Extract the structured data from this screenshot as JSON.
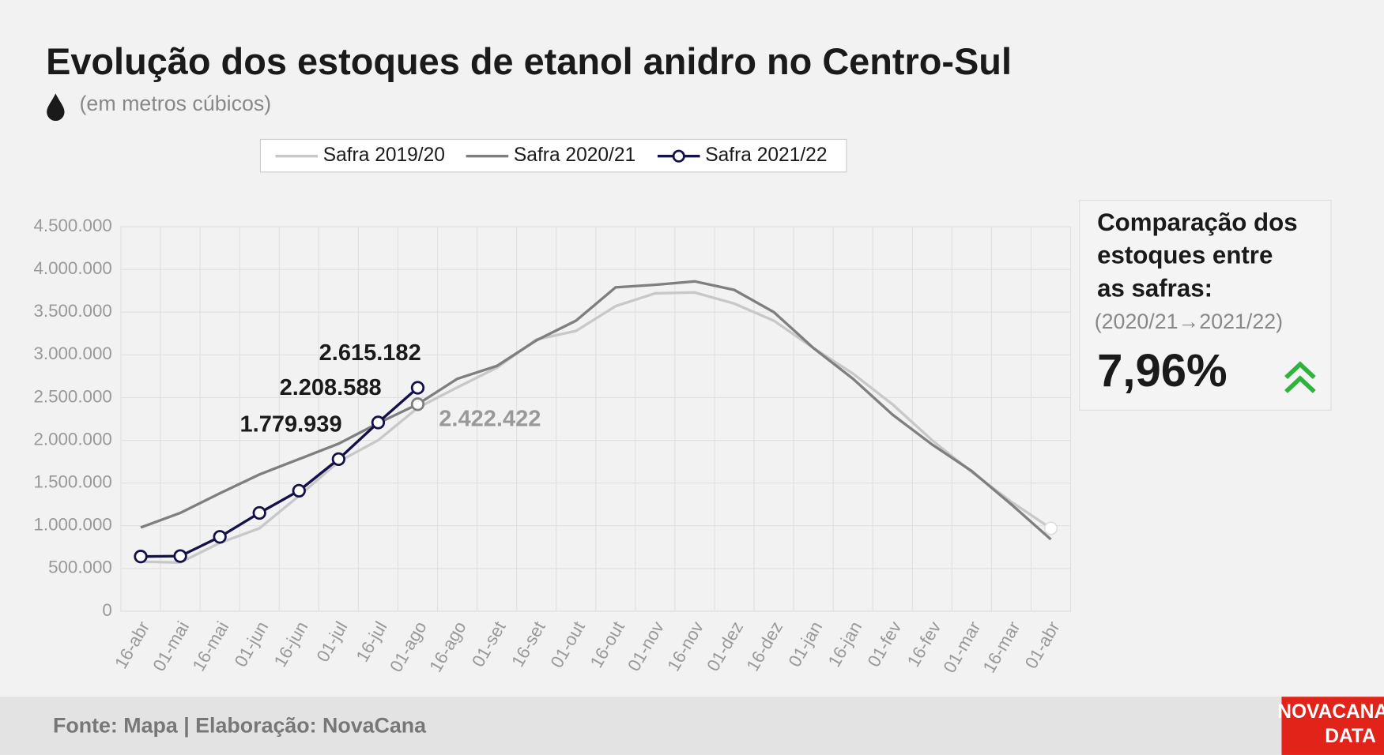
{
  "chart_data": {
    "type": "line",
    "title": "Evolução dos estoques de etanol anidro no Centro-Sul",
    "subtitle": "(em metros cúbicos)",
    "categories": [
      "16-abr",
      "01-mai",
      "16-mai",
      "01-jun",
      "16-jun",
      "01-jul",
      "16-jul",
      "01-ago",
      "16-ago",
      "01-set",
      "16-set",
      "01-out",
      "16-out",
      "01-nov",
      "16-nov",
      "01-dez",
      "16-dez",
      "01-jan",
      "16-jan",
      "01-fev",
      "16-fev",
      "01-mar",
      "16-mar",
      "01-abr"
    ],
    "series": [
      {
        "name": "Safra 2019/20",
        "color": "#c8c8c8",
        "values": [
          580000,
          570000,
          800000,
          970000,
          1350000,
          1750000,
          2000000,
          2380000,
          2620000,
          2850000,
          3180000,
          3280000,
          3570000,
          3720000,
          3730000,
          3600000,
          3400000,
          3080000,
          2780000,
          2420000,
          2000000,
          1630000,
          1280000,
          970000
        ]
      },
      {
        "name": "Safra 2020/21",
        "color": "#7f7f7f",
        "values": [
          980000,
          1150000,
          1380000,
          1600000,
          1780000,
          1960000,
          2200000,
          2422422,
          2720000,
          2870000,
          3170000,
          3400000,
          3790000,
          3820000,
          3860000,
          3760000,
          3500000,
          3080000,
          2720000,
          2300000,
          1950000,
          1640000,
          1250000,
          840000
        ],
        "value_labels": [
          null,
          null,
          null,
          null,
          null,
          null,
          null,
          "2.422.422",
          null,
          null,
          null,
          null,
          null,
          null,
          null,
          null,
          null,
          null,
          null,
          null,
          null,
          null,
          null,
          null
        ]
      },
      {
        "name": "Safra 2021/22",
        "color": "#14104a",
        "values": [
          640000,
          645000,
          870000,
          1150000,
          1410000,
          1779939,
          2208588,
          2615182,
          null,
          null,
          null,
          null,
          null,
          null,
          null,
          null,
          null,
          null,
          null,
          null,
          null,
          null,
          null,
          null
        ],
        "value_labels": [
          null,
          null,
          null,
          null,
          null,
          "1.779.939",
          "2.208.588",
          "2.615.182",
          null,
          null,
          null,
          null,
          null,
          null,
          null,
          null,
          null,
          null,
          null,
          null,
          null,
          null,
          null,
          null
        ]
      }
    ],
    "ylim": [
      0,
      4500000
    ],
    "yticks": [
      0,
      {
        "value": 500000,
        "label": "500.000"
      },
      {
        "value": 1000000,
        "label": "1.000.000"
      },
      {
        "value": 1500000,
        "label": "1.500.000"
      },
      {
        "value": 2000000,
        "label": "2.000.000"
      },
      {
        "value": 2500000,
        "label": "2.500.000"
      },
      {
        "value": 3000000,
        "label": "3.000.000"
      },
      {
        "value": 3500000,
        "label": "3.500.000"
      },
      {
        "value": 4000000,
        "label": "4.000.000"
      },
      {
        "value": 4500000,
        "label": "4.500.000"
      }
    ],
    "grid": true,
    "legend": "top"
  },
  "comparison": {
    "title": [
      "Comparação dos",
      "estoques entre",
      "as safras:"
    ],
    "subtitle": "(2020/21→2021/22)",
    "value": "7,96%"
  },
  "footer": {
    "source": "Fonte: Mapa | Elaboração: NovaCana",
    "logo": [
      "NOVACANA",
      "DATA"
    ]
  }
}
